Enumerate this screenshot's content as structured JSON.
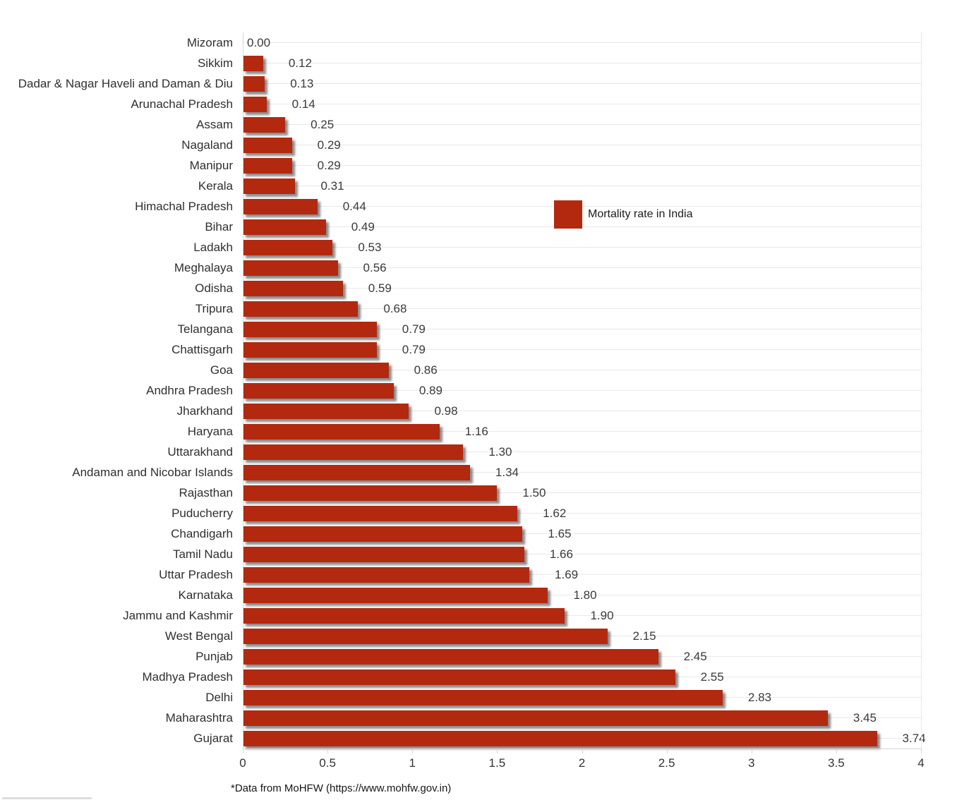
{
  "chart_data": {
    "type": "bar",
    "orientation": "horizontal",
    "title": "",
    "xlabel": "",
    "ylabel": "",
    "xlim": [
      0,
      4
    ],
    "x_tick_values": [
      0,
      0.5,
      1,
      1.5,
      2,
      2.5,
      3,
      3.5,
      4
    ],
    "x_tick_labels": [
      "0",
      "0.5",
      "1",
      "1.5",
      "2",
      "2.5",
      "3",
      "3.5",
      "4"
    ],
    "grid": "light horizontal gridline per category row",
    "bar_color": "#b2290f",
    "legend": {
      "label": "Mortality rate in India",
      "position": "inside-plot-upper-right",
      "swatch_color": "#b2290f"
    },
    "footnote": "*Data from MoHFW (https://www.mohfw.gov.in)",
    "categories": [
      "Mizoram",
      "Sikkim",
      "Dadar & Nagar Haveli and Daman & Diu",
      "Arunachal Pradesh",
      "Assam",
      "Nagaland",
      "Manipur",
      "Kerala",
      "Himachal Pradesh",
      "Bihar",
      "Ladakh",
      "Meghalaya",
      "Odisha",
      "Tripura",
      "Telangana",
      "Chattisgarh",
      "Goa",
      "Andhra Pradesh",
      "Jharkhand",
      "Haryana",
      "Uttarakhand",
      "Andaman and Nicobar Islands",
      "Rajasthan",
      "Puducherry",
      "Chandigarh",
      "Tamil Nadu",
      "Uttar Pradesh",
      "Karnataka",
      "Jammu and Kashmir",
      "West Bengal",
      "Punjab",
      "Madhya Pradesh",
      "Delhi",
      "Maharashtra",
      "Gujarat"
    ],
    "values": [
      0.0,
      0.12,
      0.13,
      0.14,
      0.25,
      0.29,
      0.29,
      0.31,
      0.44,
      0.49,
      0.53,
      0.56,
      0.59,
      0.68,
      0.79,
      0.79,
      0.86,
      0.89,
      0.98,
      1.16,
      1.3,
      1.34,
      1.5,
      1.62,
      1.65,
      1.66,
      1.69,
      1.8,
      1.9,
      2.15,
      2.45,
      2.55,
      2.83,
      3.45,
      3.74
    ],
    "value_labels": [
      "0.00",
      "0.12",
      "0.13",
      "0.14",
      "0.25",
      "0.29",
      "0.29",
      "0.31",
      "0.44",
      "0.49",
      "0.53",
      "0.56",
      "0.59",
      "0.68",
      "0.79",
      "0.79",
      "0.86",
      "0.89",
      "0.98",
      "1.16",
      "1.30",
      "1.34",
      "1.50",
      "1.62",
      "1.65",
      "1.66",
      "1.69",
      "1.80",
      "1.90",
      "2.15",
      "2.45",
      "2.55",
      "2.83",
      "3.45",
      "3.74"
    ]
  }
}
